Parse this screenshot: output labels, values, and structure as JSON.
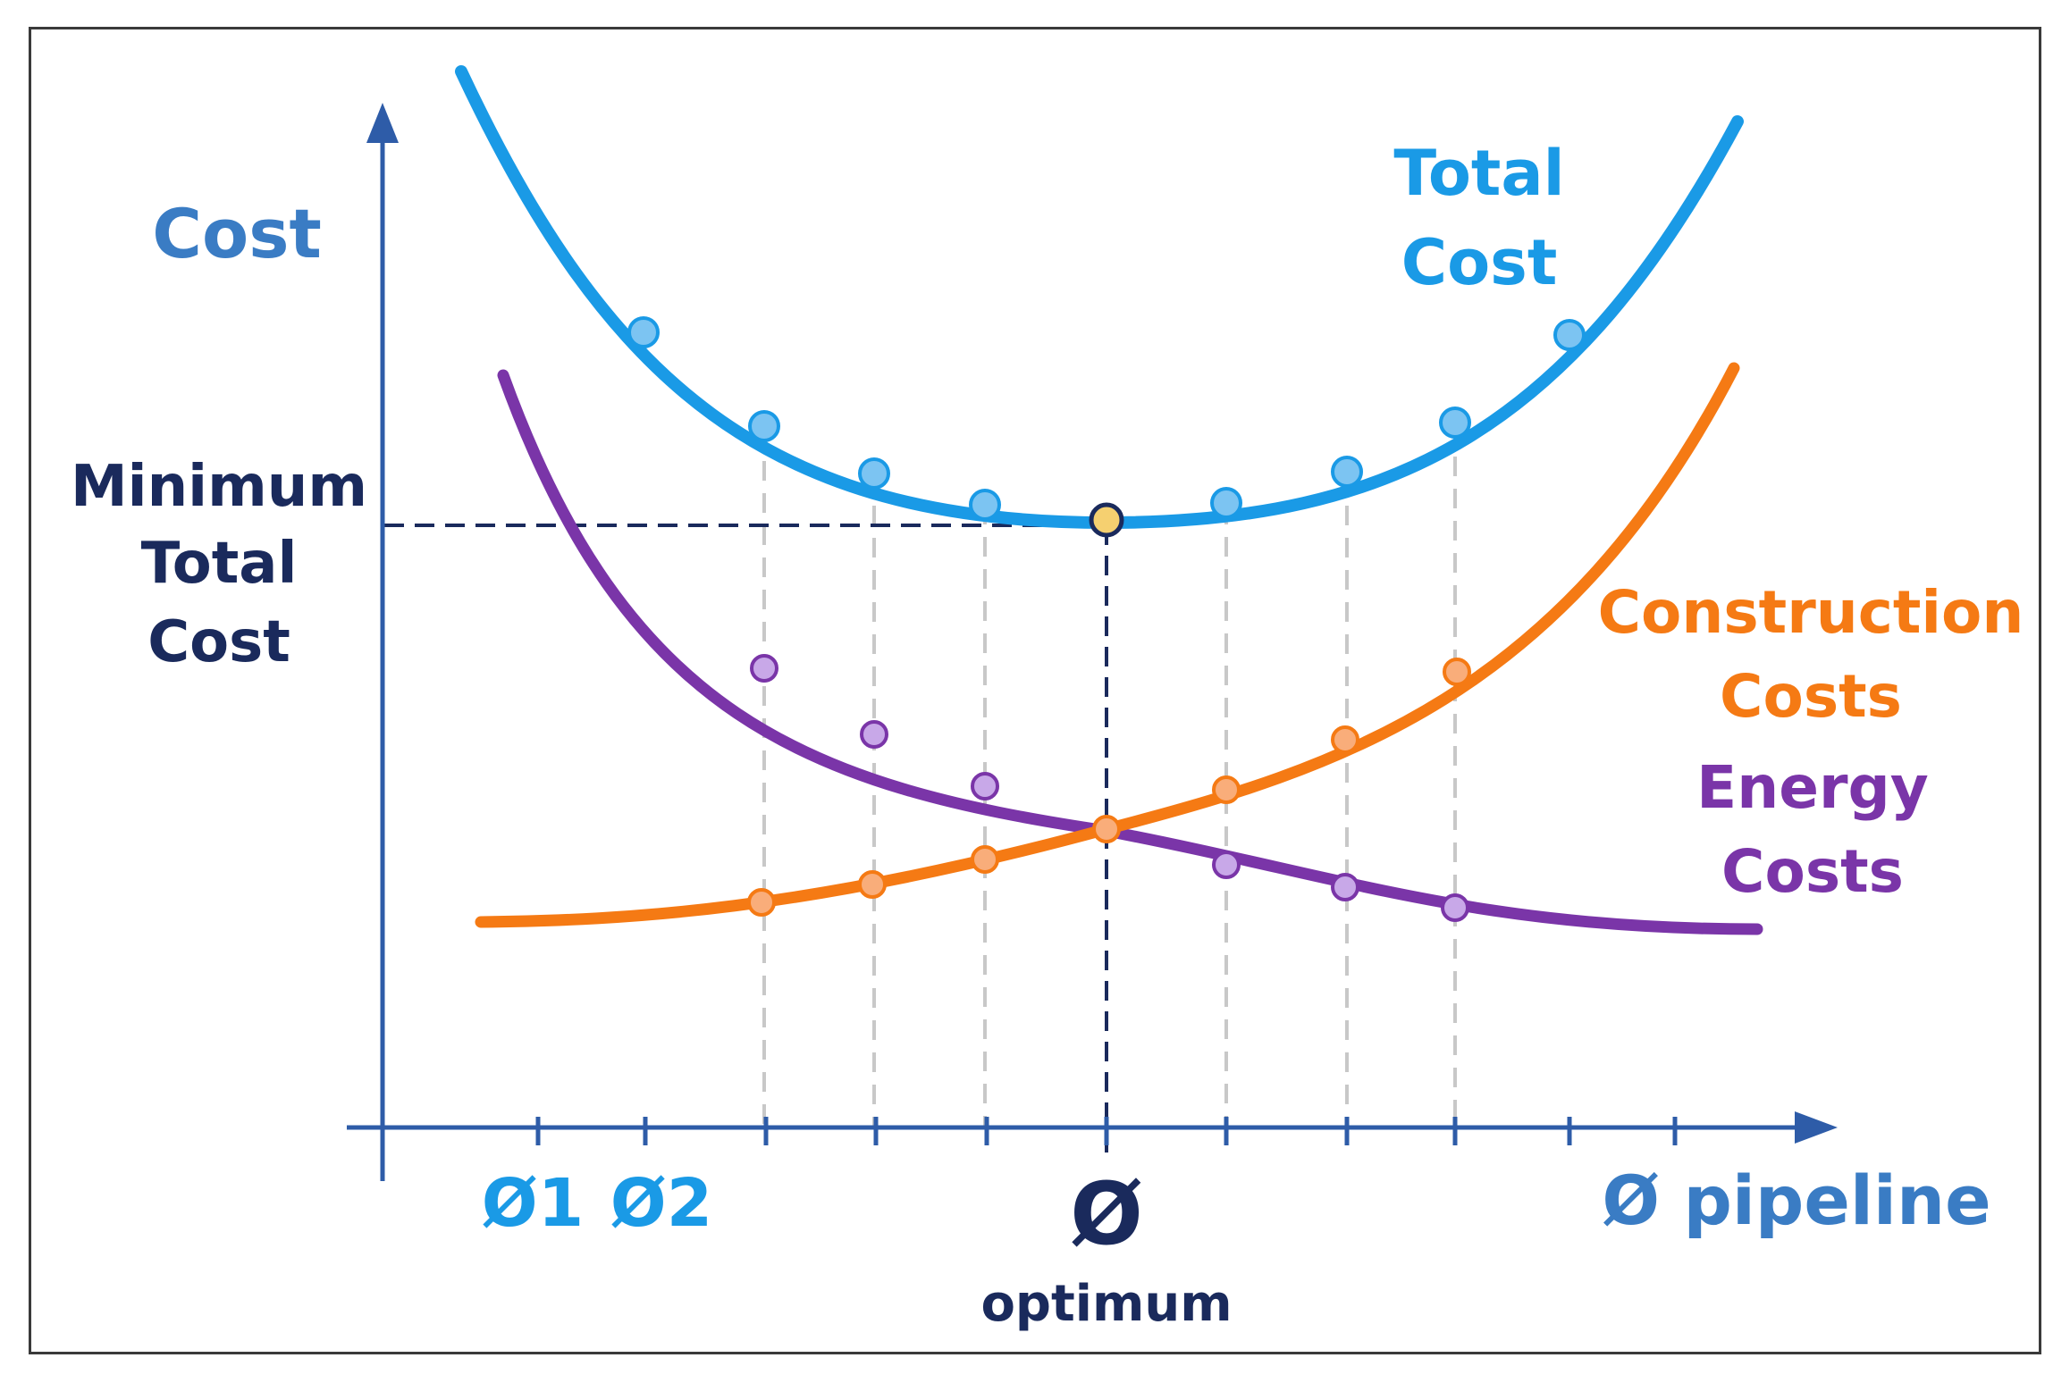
{
  "labels": {
    "y_axis": "Cost",
    "x_axis": "Ø pipeline",
    "min_total_cost": [
      "Minimum",
      "Total",
      "Cost"
    ],
    "total_cost": [
      "Total",
      "Cost"
    ],
    "construction_costs": [
      "Construction",
      "Costs"
    ],
    "energy_costs": [
      "Energy",
      "Costs"
    ],
    "tick_d1": "Ø1",
    "tick_d2": "Ø2",
    "optimum_symbol": "Ø",
    "optimum_word": "optimum"
  },
  "colors": {
    "total": "#1a9ae6",
    "total_marker": "#7cc4f2",
    "construction": "#f57a14",
    "construction_marker": "#f9ad7a",
    "energy": "#7a35a8",
    "energy_marker": "#c8a8e8",
    "axis": "#2e5ca8",
    "navy": "#1a2a5c",
    "optimum_marker": "#f5d070",
    "grid": "#c8c8c8"
  }
}
